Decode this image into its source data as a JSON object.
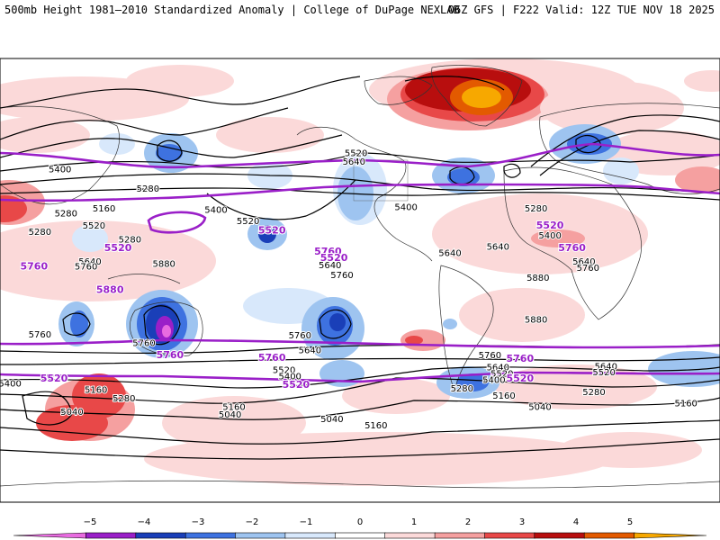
{
  "header": {
    "title": "500mb Height 1981–2010 Standardized Anomaly | College of DuPage NEXLAB",
    "run_info": "06Z GFS | F222 Valid: 12Z TUE NOV 18 2025"
  },
  "colors": {
    "highlight_contour": "#9a1fc8",
    "contour": "#000000",
    "land_border": "#333333"
  },
  "contour_labels": [
    {
      "text": "5400",
      "highlight": false,
      "lon": -150,
      "lat": 90
    },
    {
      "text": "5280",
      "highlight": false,
      "lon": -106,
      "lat": 74
    },
    {
      "text": "5520",
      "highlight": false,
      "lon": -56,
      "lat": 48
    },
    {
      "text": "5280",
      "highlight": false,
      "lon": -147,
      "lat": 54
    },
    {
      "text": "5400",
      "highlight": false,
      "lon": -72,
      "lat": 57
    },
    {
      "text": "5160",
      "highlight": false,
      "lon": -128,
      "lat": 58
    },
    {
      "text": "5280",
      "highlight": false,
      "lon": -115,
      "lat": 33
    },
    {
      "text": "5400",
      "highlight": false,
      "lon": 23,
      "lat": 59
    },
    {
      "text": "5520",
      "highlight": true,
      "lon": -44,
      "lat": 40
    },
    {
      "text": "5640",
      "highlight": false,
      "lon": -3,
      "lat": 96
    },
    {
      "text": "5520",
      "highlight": false,
      "lon": -2,
      "lat": 103
    },
    {
      "text": "5280",
      "highlight": false,
      "lon": 88,
      "lat": 58
    },
    {
      "text": "5520",
      "highlight": true,
      "lon": 95,
      "lat": 44
    },
    {
      "text": "5400",
      "highlight": false,
      "lon": 95,
      "lat": 36
    },
    {
      "text": "5640",
      "highlight": false,
      "lon": 69,
      "lat": 27
    },
    {
      "text": "5760",
      "highlight": true,
      "lon": 106,
      "lat": 26
    },
    {
      "text": "5640",
      "highlight": false,
      "lon": 112,
      "lat": 15
    },
    {
      "text": "5760",
      "highlight": false,
      "lon": 114,
      "lat": 10
    },
    {
      "text": "5520",
      "highlight": false,
      "lon": -133,
      "lat": 44
    },
    {
      "text": "5280",
      "highlight": false,
      "lon": -160,
      "lat": 39
    },
    {
      "text": "5520",
      "highlight": true,
      "lon": -121,
      "lat": 26
    },
    {
      "text": "5640",
      "highlight": false,
      "lon": -135,
      "lat": 15
    },
    {
      "text": "5760",
      "highlight": false,
      "lon": -137,
      "lat": 11
    },
    {
      "text": "5760",
      "highlight": true,
      "lon": -163,
      "lat": 11
    },
    {
      "text": "5880",
      "highlight": false,
      "lon": -98,
      "lat": 13
    },
    {
      "text": "5880",
      "highlight": true,
      "lon": -125,
      "lat": -8
    },
    {
      "text": "5760",
      "highlight": true,
      "lon": -16,
      "lat": 23
    },
    {
      "text": "5520",
      "highlight": true,
      "lon": -13,
      "lat": 18
    },
    {
      "text": "5640",
      "highlight": false,
      "lon": -15,
      "lat": 12
    },
    {
      "text": "5760",
      "highlight": false,
      "lon": -9,
      "lat": 4
    },
    {
      "text": "5640",
      "highlight": false,
      "lon": 45,
      "lat": 22
    },
    {
      "text": "5880",
      "highlight": false,
      "lon": 89,
      "lat": 2
    },
    {
      "text": "5880",
      "highlight": false,
      "lon": 88,
      "lat": -32
    },
    {
      "text": "5760",
      "highlight": false,
      "lon": -160,
      "lat": -44
    },
    {
      "text": "5760",
      "highlight": false,
      "lon": -108,
      "lat": -51
    },
    {
      "text": "5760",
      "highlight": true,
      "lon": -95,
      "lat": -61
    },
    {
      "text": "5760",
      "highlight": false,
      "lon": -30,
      "lat": -45
    },
    {
      "text": "5640",
      "highlight": false,
      "lon": -25,
      "lat": -57
    },
    {
      "text": "5760",
      "highlight": true,
      "lon": -44,
      "lat": -63
    },
    {
      "text": "5520",
      "highlight": false,
      "lon": -38,
      "lat": -73
    },
    {
      "text": "5400",
      "highlight": false,
      "lon": -35,
      "lat": -78
    },
    {
      "text": "5520",
      "highlight": true,
      "lon": -32,
      "lat": -85
    },
    {
      "text": "5760",
      "highlight": false,
      "lon": 65,
      "lat": -61
    },
    {
      "text": "5760",
      "highlight": true,
      "lon": 80,
      "lat": -64
    },
    {
      "text": "5640",
      "highlight": false,
      "lon": 69,
      "lat": -71
    },
    {
      "text": "5520",
      "highlight": false,
      "lon": 71,
      "lat": -76
    },
    {
      "text": "5400",
      "highlight": false,
      "lon": 67,
      "lat": -81
    },
    {
      "text": "5520",
      "highlight": true,
      "lon": 80,
      "lat": -80
    },
    {
      "text": "5280",
      "highlight": false,
      "lon": 51,
      "lat": -88
    },
    {
      "text": "5160",
      "highlight": false,
      "lon": 72,
      "lat": -94
    },
    {
      "text": "5040",
      "highlight": false,
      "lon": 90,
      "lat": -103
    },
    {
      "text": "5640",
      "highlight": false,
      "lon": 123,
      "lat": -70
    },
    {
      "text": "5520",
      "highlight": false,
      "lon": 122,
      "lat": -75
    },
    {
      "text": "5280",
      "highlight": false,
      "lon": 117,
      "lat": -91
    },
    {
      "text": "5520",
      "highlight": true,
      "lon": -153,
      "lat": -80
    },
    {
      "text": "5400",
      "highlight": false,
      "lon": -175,
      "lat": -84
    },
    {
      "text": "5160",
      "highlight": false,
      "lon": -132,
      "lat": -89
    },
    {
      "text": "5280",
      "highlight": false,
      "lon": -118,
      "lat": -96
    },
    {
      "text": "5040",
      "highlight": false,
      "lon": -144,
      "lat": -107
    },
    {
      "text": "5160",
      "highlight": false,
      "lon": -63,
      "lat": -103
    },
    {
      "text": "5040",
      "highlight": false,
      "lon": -65,
      "lat": -109
    },
    {
      "text": "5160",
      "highlight": false,
      "lon": 163,
      "lat": -100
    },
    {
      "text": "5040",
      "highlight": false,
      "lon": -14,
      "lat": -113
    },
    {
      "text": "5160",
      "highlight": false,
      "lon": 8,
      "lat": -118
    }
  ],
  "colorbar": {
    "ticks": [
      "−5",
      "−4",
      "−3",
      "−2",
      "−1",
      "0",
      "1",
      "2",
      "3",
      "4",
      "5"
    ],
    "colors": [
      "#e86be0",
      "#9a1fc8",
      "#1a3fb8",
      "#3e72e0",
      "#9ec4f0",
      "#d8e8fb",
      "#ffffff",
      "#fbd9d9",
      "#f5a0a0",
      "#e84848",
      "#b80e0e",
      "#e35a00",
      "#f7a800"
    ]
  }
}
